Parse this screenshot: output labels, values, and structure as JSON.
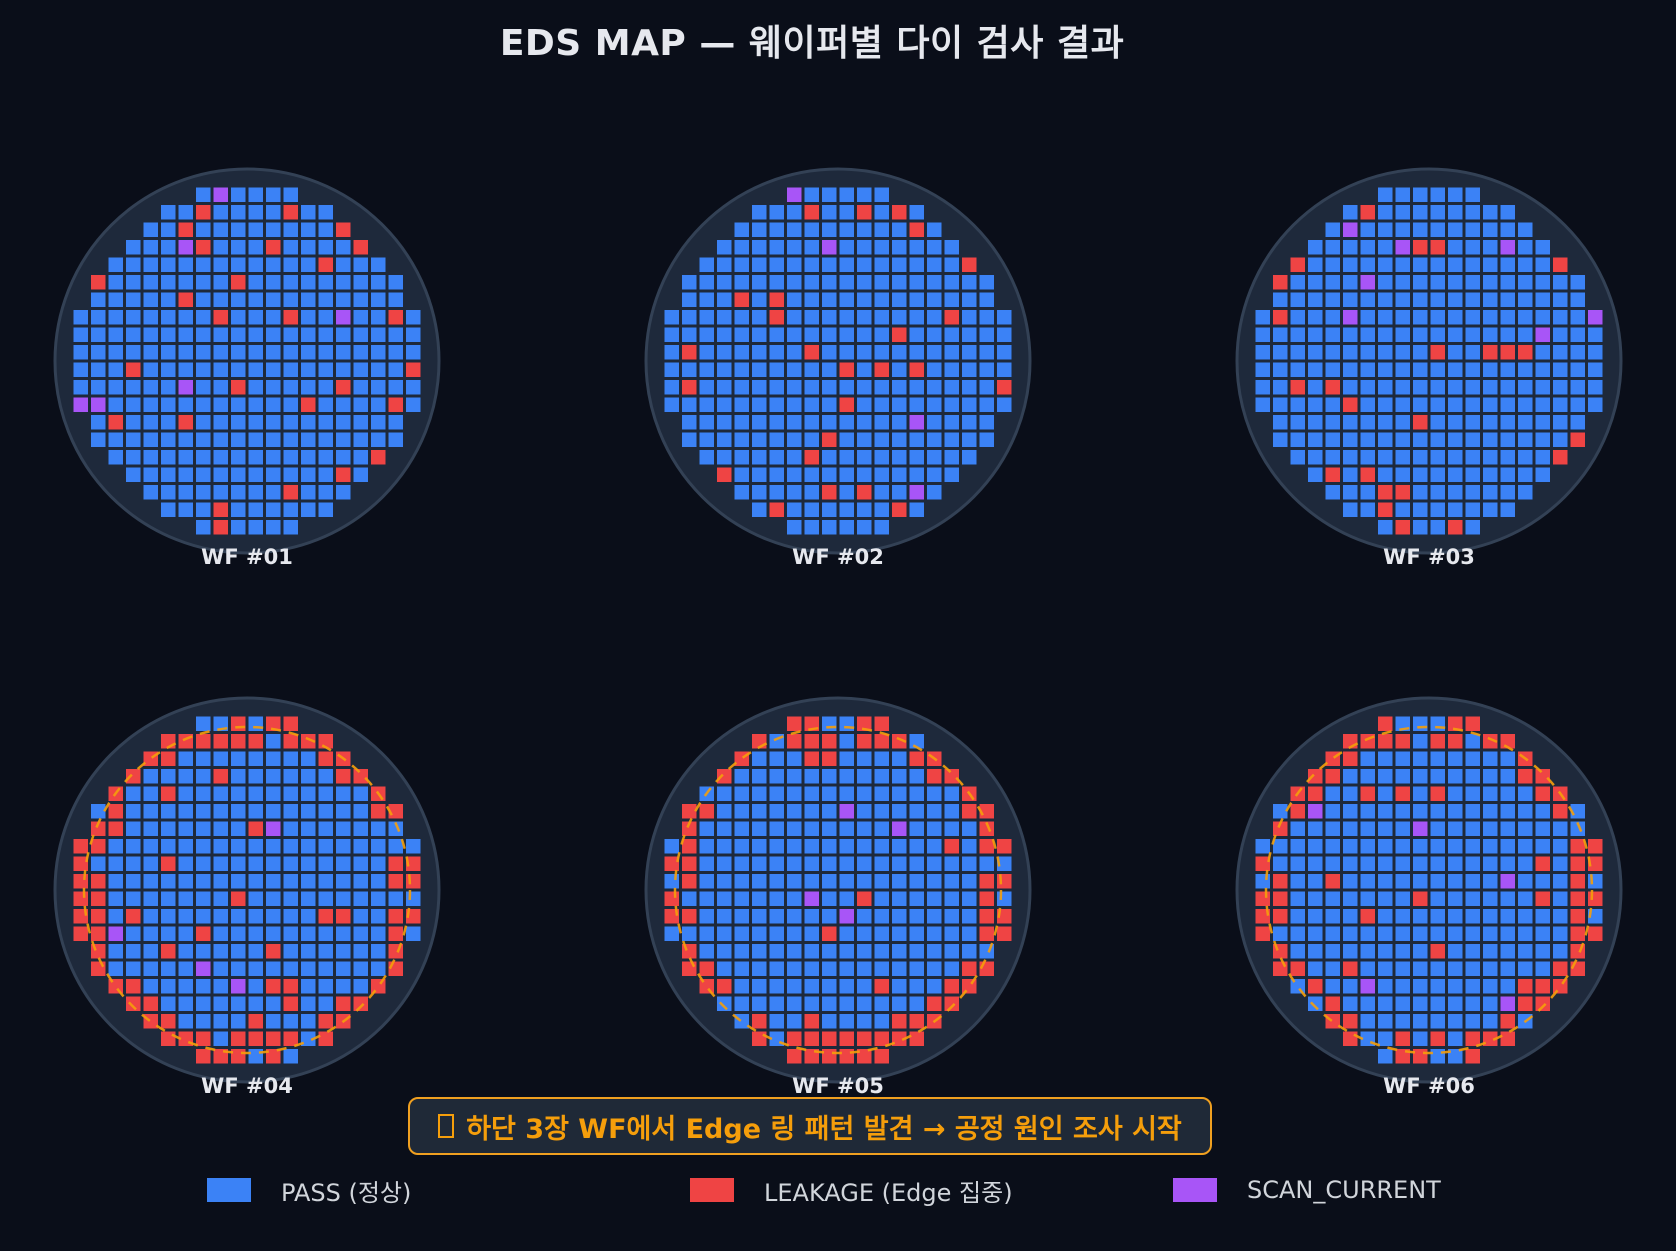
{
  "title": "EDS MAP — 웨이퍼별 다이 검사 결과",
  "colors": {
    "pass": "#3b82f6",
    "leakage": "#ef4444",
    "scan_current": "#a855f7",
    "wafer_fill": "#1e293b",
    "wafer_edge": "#334155",
    "ring": "#f59e0b"
  },
  "wafers": [
    {
      "label": "WF #01",
      "ring": false,
      "leakage": 0.07,
      "scan_current": 0.02
    },
    {
      "label": "WF #02",
      "ring": false,
      "leakage": 0.06,
      "scan_current": 0.015
    },
    {
      "label": "WF #03",
      "ring": false,
      "leakage": 0.08,
      "scan_current": 0.025
    },
    {
      "label": "WF #04",
      "ring": true,
      "leakage": 0.06,
      "scan_current": 0.02
    },
    {
      "label": "WF #05",
      "ring": true,
      "leakage": 0.06,
      "scan_current": 0.025
    },
    {
      "label": "WF #06",
      "ring": true,
      "leakage": 0.06,
      "scan_current": 0.025
    }
  ],
  "callout": "하단 3장 WF에서 Edge 링 패턴 발견 → 공정 원인 조사 시작",
  "legend": [
    {
      "key": "pass",
      "label": "PASS (정상)"
    },
    {
      "key": "leakage",
      "label": "LEAKAGE (Edge 집중)"
    },
    {
      "key": "scan_current",
      "label": "SCAN_CURRENT"
    }
  ]
}
